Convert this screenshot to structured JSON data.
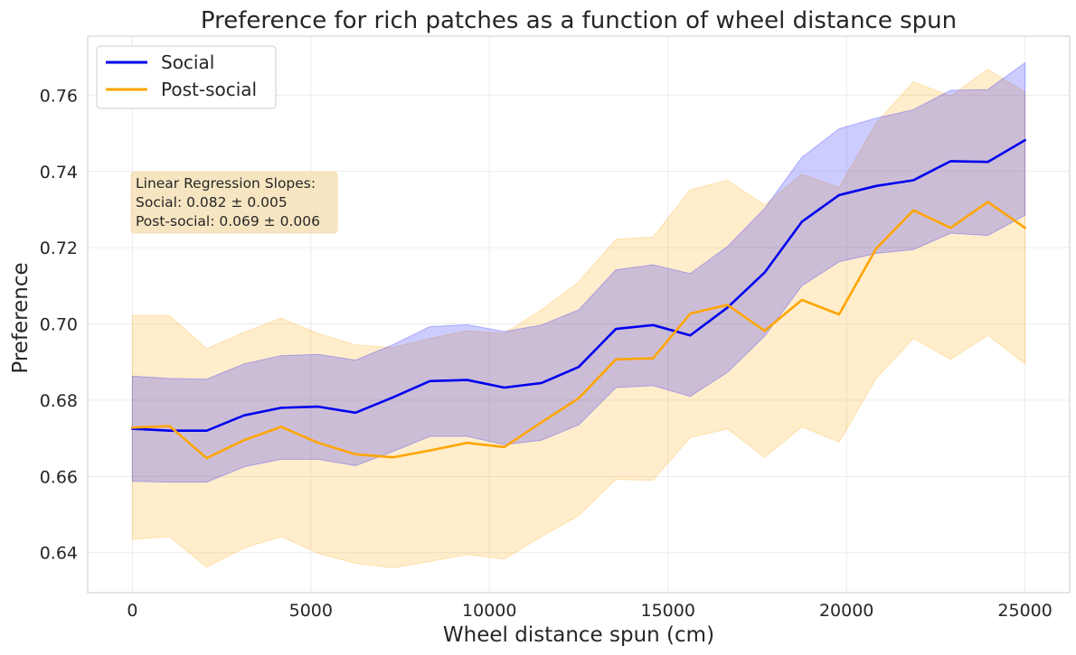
{
  "chart_data": {
    "type": "line",
    "title": "Preference for rich patches as a function of wheel distance spun",
    "xlabel": "Wheel distance spun (cm)",
    "ylabel": "Preference",
    "xlim": [
      -1250,
      26250
    ],
    "ylim": [
      0.6295,
      0.7755
    ],
    "xticks": [
      0,
      5000,
      10000,
      15000,
      20000,
      25000
    ],
    "xtick_labels": [
      "0",
      "5000",
      "10000",
      "15000",
      "20000",
      "25000"
    ],
    "yticks": [
      0.64,
      0.66,
      0.68,
      0.7,
      0.72,
      0.74,
      0.76
    ],
    "ytick_labels": [
      "0.64",
      "0.66",
      "0.68",
      "0.70",
      "0.72",
      "0.74",
      "0.76"
    ],
    "grid": true,
    "legend_position": "top-left",
    "x": [
      0,
      1042,
      2083,
      3125,
      4167,
      5208,
      6250,
      7292,
      8333,
      9375,
      10417,
      11458,
      12500,
      13542,
      14583,
      15625,
      16667,
      17708,
      18750,
      19792,
      20833,
      21875,
      22917,
      23958,
      25000
    ],
    "series": [
      {
        "name": "Social",
        "color": "#0000ee",
        "band_color": "#0000ff",
        "values": [
          0.6725,
          0.672,
          0.672,
          0.676,
          0.678,
          0.6783,
          0.6767,
          0.6807,
          0.685,
          0.6853,
          0.6833,
          0.6845,
          0.6887,
          0.6987,
          0.6997,
          0.697,
          0.7043,
          0.7135,
          0.7268,
          0.7338,
          0.7362,
          0.7377,
          0.7427,
          0.7425,
          0.7482
        ],
        "lower": [
          0.6587,
          0.6585,
          0.6585,
          0.6625,
          0.6645,
          0.6645,
          0.6628,
          0.6665,
          0.6705,
          0.6705,
          0.6683,
          0.6695,
          0.6735,
          0.6833,
          0.6838,
          0.681,
          0.6873,
          0.6968,
          0.71,
          0.7163,
          0.7185,
          0.7195,
          0.7238,
          0.7232,
          0.7285
        ],
        "upper": [
          0.6863,
          0.6857,
          0.6855,
          0.6895,
          0.6917,
          0.692,
          0.6905,
          0.6945,
          0.6993,
          0.6998,
          0.698,
          0.6997,
          0.7037,
          0.7142,
          0.7155,
          0.7132,
          0.7203,
          0.7303,
          0.7437,
          0.7512,
          0.754,
          0.7562,
          0.7613,
          0.7615,
          0.7685
        ]
      },
      {
        "name": "Post-social",
        "color": "#ffa500",
        "band_color": "#ffa500",
        "values": [
          0.6728,
          0.6732,
          0.6648,
          0.6695,
          0.673,
          0.6688,
          0.6658,
          0.665,
          0.6668,
          0.6688,
          0.6677,
          0.6742,
          0.6805,
          0.6907,
          0.691,
          0.7027,
          0.705,
          0.6982,
          0.7063,
          0.7025,
          0.7198,
          0.7298,
          0.7252,
          0.732,
          0.7252
        ],
        "lower": [
          0.6435,
          0.6442,
          0.6362,
          0.6412,
          0.6442,
          0.6398,
          0.6372,
          0.636,
          0.6377,
          0.6395,
          0.6383,
          0.6442,
          0.6497,
          0.6592,
          0.659,
          0.6702,
          0.6725,
          0.665,
          0.673,
          0.669,
          0.6857,
          0.6962,
          0.6907,
          0.697,
          0.6895
        ],
        "upper": [
          0.7022,
          0.7022,
          0.6935,
          0.6978,
          0.7015,
          0.6975,
          0.6945,
          0.6938,
          0.6962,
          0.6982,
          0.6975,
          0.7037,
          0.711,
          0.7222,
          0.7228,
          0.7352,
          0.7377,
          0.7312,
          0.7393,
          0.7358,
          0.7527,
          0.7635,
          0.7598,
          0.7668,
          0.7608
        ]
      }
    ],
    "annotation": {
      "lines": [
        "Linear Regression Slopes:",
        "Social: 0.082 ± 0.005",
        "Post-social: 0.069 ± 0.006"
      ],
      "box_color": "#f5deb3"
    },
    "axes_style": {
      "background": "#ffffff",
      "grid_color": "#ebebeb",
      "spine_color": "#cccccc"
    }
  }
}
